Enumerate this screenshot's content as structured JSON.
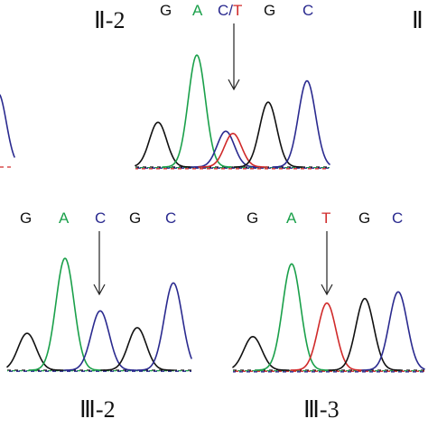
{
  "colors": {
    "G": "#111111",
    "A": "#1aa04a",
    "C": "#2a2a8f",
    "T": "#d02a2a"
  },
  "panels": [
    {
      "id": "II-2",
      "label": "Ⅱ-2",
      "bases": [
        {
          "text": "G",
          "kind": "G"
        },
        {
          "text": "A",
          "kind": "A"
        },
        {
          "text": "C/T",
          "kind": "CT"
        },
        {
          "text": "G",
          "kind": "G"
        },
        {
          "text": "C",
          "kind": "C"
        }
      ],
      "peaks": [
        {
          "base": "G",
          "level": 0.4
        },
        {
          "base": "A",
          "level": 1.0
        },
        {
          "base": "C",
          "level": 0.32
        },
        {
          "base": "T",
          "level": 0.3
        },
        {
          "base": "G",
          "level": 0.58
        },
        {
          "base": "C",
          "level": 0.77
        }
      ]
    },
    {
      "id": "II-partial",
      "label": "Ⅱ",
      "bases": [],
      "peaks": []
    },
    {
      "id": "III-2",
      "label": "Ⅲ-2",
      "bases": [
        {
          "text": "G",
          "kind": "G"
        },
        {
          "text": "A",
          "kind": "A"
        },
        {
          "text": "C",
          "kind": "C"
        },
        {
          "text": "G",
          "kind": "G"
        },
        {
          "text": "C",
          "kind": "C"
        }
      ],
      "peaks": [
        {
          "base": "G",
          "level": 0.33
        },
        {
          "base": "A",
          "level": 1.0
        },
        {
          "base": "C",
          "level": 0.53
        },
        {
          "base": "G",
          "level": 0.38
        },
        {
          "base": "C",
          "level": 0.78
        }
      ]
    },
    {
      "id": "III-3",
      "label": "Ⅲ-3",
      "bases": [
        {
          "text": "G",
          "kind": "G"
        },
        {
          "text": "A",
          "kind": "A"
        },
        {
          "text": "T",
          "kind": "T"
        },
        {
          "text": "G",
          "kind": "G"
        },
        {
          "text": "C",
          "kind": "C"
        }
      ],
      "peaks": [
        {
          "base": "G",
          "level": 0.3
        },
        {
          "base": "A",
          "level": 0.95
        },
        {
          "base": "T",
          "level": 0.6
        },
        {
          "base": "G",
          "level": 0.64
        },
        {
          "base": "C",
          "level": 0.7
        }
      ]
    }
  ],
  "edge_fragment_peaks": [
    {
      "base": "C",
      "level": 0.66
    },
    {
      "base": "T",
      "level": 0.08
    }
  ]
}
